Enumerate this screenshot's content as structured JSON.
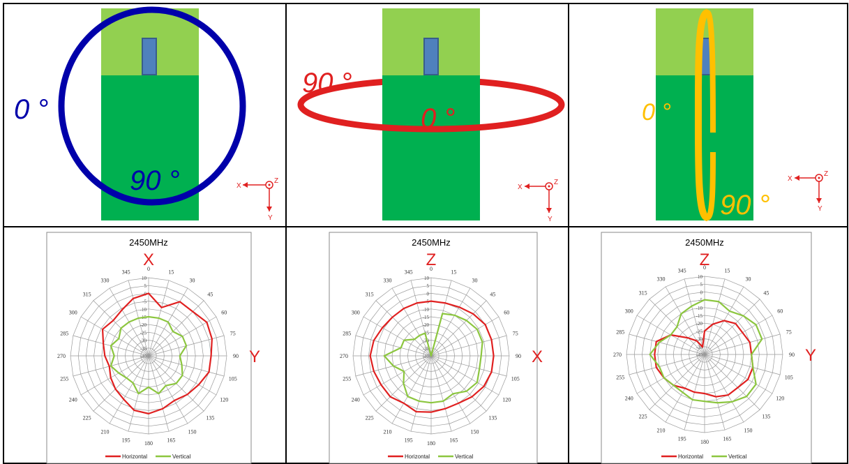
{
  "panels": [
    {
      "angle_a": "0 °",
      "angle_b": "90 °",
      "axis_x": "X",
      "axis_y": "Y",
      "axis_z": "Z"
    },
    {
      "angle_a": "90 °",
      "angle_b": "0 °",
      "axis_x": "X",
      "axis_y": "Y",
      "axis_z": "Z"
    },
    {
      "angle_a": "0 °",
      "angle_b": "90 °",
      "axis_x": "X",
      "axis_y": "Y",
      "axis_z": "Z"
    }
  ],
  "chart_data": [
    {
      "type": "radar",
      "title": "2450MHz",
      "axis_top": "X",
      "axis_right": "Y",
      "categories": [
        0,
        15,
        30,
        45,
        60,
        75,
        90,
        105,
        120,
        135,
        150,
        165,
        180,
        195,
        210,
        225,
        240,
        255,
        270,
        285,
        300,
        315,
        330,
        345
      ],
      "ylim": [
        -40,
        10
      ],
      "yticks": [
        -40,
        -35,
        -30,
        -25,
        -20,
        -15,
        -10,
        -5,
        0,
        5,
        10
      ],
      "series": [
        {
          "name": "Horizontal",
          "color": "#e02020",
          "values": [
            0,
            -8,
            0,
            0,
            3,
            2,
            0,
            0,
            -3,
            -5,
            -7,
            -5,
            -3,
            -4,
            -8,
            -10,
            -12,
            -14,
            -12,
            -10,
            -6,
            -8,
            -6,
            -2
          ]
        },
        {
          "name": "Vertical",
          "color": "#8cc63f",
          "values": [
            -15,
            -15,
            -15,
            -18,
            -15,
            -15,
            -20,
            -18,
            -15,
            -15,
            -18,
            -15,
            -20,
            -15,
            -20,
            -20,
            -18,
            -15,
            -18,
            -15,
            -18,
            -15,
            -15,
            -15
          ]
        }
      ]
    },
    {
      "type": "radar",
      "title": "2450MHz",
      "axis_top": "Z",
      "axis_right": "X",
      "categories": [
        0,
        15,
        30,
        45,
        60,
        75,
        90,
        105,
        120,
        135,
        150,
        165,
        180,
        195,
        210,
        225,
        240,
        255,
        270,
        285,
        300,
        315,
        330,
        345
      ],
      "ylim": [
        -40,
        10
      ],
      "yticks": [
        -40,
        -35,
        -30,
        -25,
        -20,
        -15,
        -10,
        -5,
        0,
        5,
        10
      ],
      "series": [
        {
          "name": "Horizontal",
          "color": "#e02020",
          "values": [
            -5,
            -5,
            -4,
            -2,
            0,
            0,
            0,
            0,
            -1,
            -3,
            -5,
            -5,
            -4,
            -3,
            -5,
            -3,
            -3,
            -2,
            -1,
            -2,
            -4,
            -5,
            -5,
            -5
          ]
        },
        {
          "name": "Vertical",
          "color": "#8cc63f",
          "values": [
            -40,
            -12,
            -10,
            -8,
            -6,
            -6,
            -8,
            -8,
            -6,
            -8,
            -12,
            -10,
            -10,
            -10,
            -10,
            -15,
            -20,
            -15,
            -10,
            -20,
            -20,
            -25,
            -25,
            -25
          ]
        }
      ]
    },
    {
      "type": "radar",
      "title": "2450MHz",
      "axis_top": "Z",
      "axis_right": "Y",
      "categories": [
        0,
        15,
        30,
        45,
        60,
        75,
        90,
        105,
        120,
        135,
        150,
        165,
        180,
        195,
        210,
        225,
        240,
        255,
        270,
        285,
        300,
        315,
        330,
        345
      ],
      "ylim": [
        -40,
        10
      ],
      "yticks": [
        -40,
        -35,
        -30,
        -25,
        -20,
        -15,
        -10,
        -5,
        0,
        5,
        10
      ],
      "series": [
        {
          "name": "Horizontal",
          "color": "#e02020",
          "values": [
            -25,
            -20,
            -15,
            -12,
            -12,
            -10,
            -10,
            -8,
            -8,
            -10,
            -10,
            -12,
            -15,
            -15,
            -15,
            -12,
            -10,
            -8,
            -8,
            -8,
            -15,
            -25,
            -30,
            -35
          ]
        },
        {
          "name": "Vertical",
          "color": "#8cc63f",
          "values": [
            -5,
            -5,
            -8,
            -5,
            -2,
            -2,
            -10,
            -8,
            -2,
            -2,
            -5,
            -8,
            -10,
            -10,
            -12,
            -12,
            -10,
            -10,
            -5,
            -10,
            -15,
            -15,
            -10,
            -8
          ]
        }
      ]
    }
  ]
}
